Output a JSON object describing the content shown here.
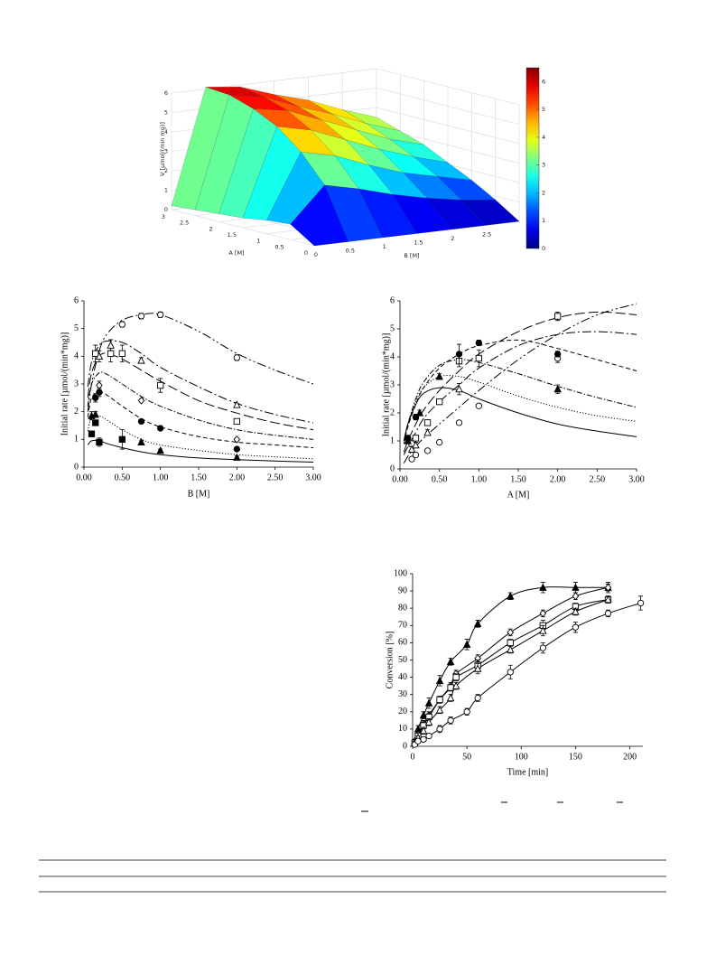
{
  "chart_data": [
    {
      "type": "surface",
      "zlabel": "V [µmol/(min mg)]",
      "xlabel": "A [M]",
      "ylabel": "B [M]",
      "x": [
        0,
        0.5,
        1,
        1.5,
        2,
        2.5,
        3
      ],
      "y": [
        0,
        0.5,
        1,
        1.5,
        2,
        2.5,
        3
      ],
      "z": [
        [
          0,
          0.8,
          0.7,
          0.5,
          0.4,
          0.3,
          0.2
        ],
        [
          0,
          2.6,
          4.0,
          5.0,
          5.6,
          6.0,
          6.1
        ],
        [
          0,
          2.2,
          3.6,
          4.6,
          5.3,
          5.7,
          5.9
        ],
        [
          0,
          1.7,
          2.9,
          3.9,
          4.6,
          5.0,
          5.3
        ],
        [
          0,
          1.3,
          2.3,
          3.2,
          3.9,
          4.4,
          4.8
        ],
        [
          0,
          1.0,
          1.9,
          2.6,
          3.2,
          3.7,
          4.1
        ],
        [
          0,
          0.8,
          1.5,
          2.1,
          2.7,
          3.1,
          3.5
        ]
      ],
      "xlim": [
        0,
        3
      ],
      "ylim": [
        0,
        3
      ],
      "zlim": [
        0,
        6
      ],
      "xticks": [
        0,
        0.5,
        1,
        1.5,
        2,
        2.5,
        3
      ],
      "yticks": [
        0,
        0.5,
        1,
        1.5,
        2,
        2.5
      ],
      "zticks": [
        0,
        1,
        2,
        3,
        4,
        5,
        6
      ],
      "colormap": "jet",
      "clim": [
        0,
        6.5
      ],
      "cticks": [
        0,
        1,
        2,
        3,
        4,
        5,
        6
      ],
      "grid": true
    },
    {
      "type": "line",
      "xlabel": "B [M]",
      "ylabel": "Initial rate [µmol/(min*mg)]",
      "xlim": [
        0,
        3
      ],
      "ylim": [
        0,
        6
      ],
      "xticks": [
        {
          "value": 0,
          "label": "0.00"
        },
        {
          "value": 0.5,
          "label": "0.50"
        },
        {
          "value": 1,
          "label": "1.00"
        },
        {
          "value": 1.5,
          "label": "1.50"
        },
        {
          "value": 2,
          "label": "2.00"
        },
        {
          "value": 2.5,
          "label": "2.50"
        },
        {
          "value": 3,
          "label": "3.00"
        }
      ],
      "yticks": [
        0,
        1,
        2,
        3,
        4,
        5,
        6
      ],
      "fit_x": [
        0.05,
        0.1,
        0.2,
        0.3,
        0.5,
        0.75,
        1,
        1.5,
        2,
        2.5,
        3
      ],
      "series": [
        {
          "color": "#000",
          "line_style": "dash-dot-dot",
          "marker": "circle-open",
          "x": [
            0.5,
            0.75,
            1,
            2
          ],
          "values": [
            5.15,
            5.45,
            5.5,
            3.95
          ],
          "errors": [
            0.1,
            0.1,
            0.1,
            0.1
          ],
          "fit": [
            2.0,
            3.0,
            4.2,
            4.8,
            5.3,
            5.5,
            5.5,
            4.9,
            4.1,
            3.5,
            3.0
          ]
        },
        {
          "color": "#000",
          "line_style": "dash-long",
          "marker": "square-open",
          "x": [
            0.15,
            0.35,
            0.5,
            1,
            2
          ],
          "values": [
            4.1,
            4.1,
            4.1,
            2.95,
            1.65
          ],
          "errors": [
            0.3,
            0.3,
            0.3,
            0.25,
            0.05
          ],
          "fit": [
            2.5,
            3.4,
            4.0,
            4.1,
            3.9,
            3.5,
            3.1,
            2.4,
            1.95,
            1.6,
            1.35
          ]
        },
        {
          "color": "#000",
          "line_style": "dash-dot",
          "marker": "triangle-open",
          "x": [
            0.2,
            0.35,
            0.75,
            2
          ],
          "values": [
            4.0,
            4.4,
            3.85,
            2.25
          ],
          "errors": [
            0.2,
            0.2,
            0.1,
            0.05
          ],
          "fit": [
            2.9,
            3.8,
            4.4,
            4.55,
            4.5,
            4.1,
            3.6,
            2.9,
            2.3,
            1.9,
            1.6
          ]
        },
        {
          "color": "#000",
          "line_style": "dash-dot-short",
          "marker": "diamond-open",
          "x": [
            0.2,
            0.75,
            2
          ],
          "values": [
            2.95,
            2.4,
            1.0
          ],
          "errors": [
            0.15,
            0.05,
            0.05
          ],
          "fit": [
            2.2,
            3.0,
            3.4,
            3.35,
            3.0,
            2.55,
            2.2,
            1.7,
            1.35,
            1.15,
            1.0
          ]
        },
        {
          "color": "#000",
          "line_style": "dashed",
          "marker": "circle-filled",
          "x": [
            0.15,
            0.2,
            0.75,
            1,
            2
          ],
          "values": [
            2.5,
            2.7,
            1.65,
            1.4,
            0.65
          ],
          "errors": [
            0.15,
            0.15,
            0.05,
            0.05,
            0.05
          ],
          "fit": [
            1.8,
            2.5,
            2.7,
            2.6,
            2.2,
            1.75,
            1.45,
            1.1,
            0.9,
            0.8,
            0.7
          ]
        },
        {
          "color": "#000",
          "line_style": "dotted",
          "marker": "triangle-filled",
          "x": [
            0.1,
            0.15,
            0.75,
            1,
            2
          ],
          "values": [
            1.85,
            1.9,
            0.9,
            0.6,
            0.35
          ],
          "errors": [
            0.15,
            0.1,
            0.05,
            0.05,
            0.05
          ],
          "fit": [
            1.3,
            1.8,
            1.85,
            1.7,
            1.35,
            1.0,
            0.8,
            0.6,
            0.45,
            0.37,
            0.3
          ]
        },
        {
          "color": "#000",
          "line_style": "solid",
          "marker": "square-filled",
          "x": [
            0.1,
            0.15,
            0.2,
            0.5
          ],
          "values": [
            1.2,
            1.6,
            0.9,
            1.0
          ],
          "errors": [
            0.1,
            0.1,
            0.15,
            0.35
          ],
          "fit": [
            0.8,
            0.95,
            0.95,
            0.85,
            0.7,
            0.55,
            0.45,
            0.33,
            0.27,
            0.22,
            0.18
          ]
        }
      ]
    },
    {
      "type": "line",
      "xlabel": "A [M]",
      "ylabel": "Initial rate [µmol/(min*mg)]",
      "xlim": [
        0,
        3
      ],
      "ylim": [
        0,
        6
      ],
      "xticks": [
        {
          "value": 0,
          "label": "0.00"
        },
        {
          "value": 0.5,
          "label": "0.50"
        },
        {
          "value": 1,
          "label": "1.00"
        },
        {
          "value": 1.5,
          "label": "1.50"
        },
        {
          "value": 2,
          "label": "2.00"
        },
        {
          "value": 2.5,
          "label": "2.50"
        },
        {
          "value": 3,
          "label": "3.00"
        }
      ],
      "yticks": [
        0,
        1,
        2,
        3,
        4,
        5,
        6
      ],
      "fit_x": [
        0.05,
        0.1,
        0.2,
        0.3,
        0.5,
        0.75,
        1,
        1.5,
        2,
        2.5,
        3
      ],
      "series": [
        {
          "color": "#000",
          "line_style": "dash-dot-dot",
          "marker": "circle-open",
          "x": [
            0.15,
            0.2,
            0.35,
            0.5,
            0.75,
            1,
            2
          ],
          "values": [
            0.35,
            0.5,
            0.65,
            0.95,
            1.65,
            2.25,
            3.95
          ],
          "errors": [
            0.05,
            0.05,
            0.05,
            0.05,
            0.05,
            0.05,
            0.15
          ],
          "fit": [
            0.2,
            0.45,
            0.8,
            1.1,
            1.6,
            2.2,
            2.8,
            3.9,
            4.8,
            5.5,
            5.9
          ]
        },
        {
          "color": "#000",
          "line_style": "dash-long",
          "marker": "square-open",
          "x": [
            0.15,
            0.2,
            0.35,
            0.5,
            0.75,
            1,
            2
          ],
          "values": [
            0.9,
            1.1,
            1.65,
            2.4,
            3.85,
            3.95,
            5.45
          ],
          "errors": [
            0.1,
            0.1,
            0.1,
            0.1,
            0.2,
            0.3,
            0.15
          ],
          "fit": [
            0.6,
            1.0,
            1.6,
            2.1,
            2.8,
            3.5,
            4.1,
            4.9,
            5.4,
            5.6,
            5.5
          ]
        },
        {
          "color": "#000",
          "line_style": "dash-dot",
          "marker": "triangle-open",
          "x": [
            0.15,
            0.2,
            0.35,
            0.75
          ],
          "values": [
            0.7,
            0.85,
            1.3,
            2.85
          ],
          "errors": [
            0.1,
            0.1,
            0.1,
            0.2
          ],
          "fit": [
            0.5,
            0.8,
            1.3,
            1.8,
            2.4,
            3.0,
            3.6,
            4.4,
            4.8,
            4.9,
            4.8
          ]
        },
        {
          "color": "#000",
          "line_style": "dashed",
          "marker": "circle-filled",
          "x": [
            0.1,
            0.2,
            0.75,
            1,
            2
          ],
          "values": [
            1.1,
            1.85,
            4.1,
            4.5,
            4.1
          ],
          "errors": [
            0.1,
            0.1,
            0.35,
            0.1,
            0.1
          ],
          "fit": [
            0.9,
            1.5,
            2.3,
            2.9,
            3.6,
            4.1,
            4.4,
            4.6,
            4.3,
            3.9,
            3.5
          ]
        },
        {
          "color": "#000",
          "line_style": "dash-dot-short",
          "marker": "triangle-filled",
          "x": [
            0.1,
            0.25,
            0.5,
            2
          ],
          "values": [
            1.0,
            2.0,
            3.3,
            2.85
          ],
          "errors": [
            0.1,
            0.1,
            0.1,
            0.15
          ],
          "fit": [
            1.0,
            1.6,
            2.5,
            3.1,
            3.7,
            3.9,
            3.8,
            3.4,
            2.95,
            2.55,
            2.2
          ]
        },
        {
          "color": "#000",
          "line_style": "dotted",
          "marker": "none",
          "x": [],
          "values": [],
          "errors": [],
          "fit": [
            1.0,
            1.6,
            2.4,
            2.9,
            3.3,
            3.3,
            3.1,
            2.6,
            2.2,
            1.9,
            1.7
          ]
        },
        {
          "color": "#000",
          "line_style": "solid",
          "marker": "none",
          "x": [],
          "values": [],
          "errors": [],
          "fit": [
            1.0,
            1.6,
            2.3,
            2.7,
            2.9,
            2.8,
            2.5,
            2.0,
            1.6,
            1.35,
            1.15
          ]
        }
      ]
    },
    {
      "type": "line",
      "xlabel": "Time [min]",
      "ylabel": "Conversion [%]",
      "xlim": [
        0,
        212
      ],
      "ylim": [
        0,
        100
      ],
      "xticks": [
        0,
        50,
        100,
        150,
        200
      ],
      "yticks": [
        0,
        10,
        20,
        30,
        40,
        50,
        60,
        70,
        80,
        90,
        100
      ],
      "series": [
        {
          "color": "#000",
          "line_style": "solid",
          "marker": "triangle-filled",
          "x": [
            2,
            5,
            10,
            15,
            25,
            35,
            50,
            60,
            90,
            120,
            150,
            180
          ],
          "values": [
            3,
            10,
            18,
            25,
            38,
            49,
            59,
            71,
            87,
            92,
            92,
            92
          ],
          "errors": [
            1,
            2,
            2,
            3,
            3,
            2,
            3,
            2,
            2,
            3,
            3,
            3
          ]
        },
        {
          "color": "#000",
          "line_style": "solid",
          "marker": "diamond-open",
          "x": [
            2,
            5,
            10,
            15,
            25,
            35,
            40,
            60,
            90,
            120,
            150,
            180
          ],
          "values": [
            3,
            7,
            13,
            18,
            27,
            35,
            42,
            51,
            66,
            77,
            87,
            92
          ],
          "errors": [
            1,
            2,
            2,
            2,
            2,
            2,
            2,
            2,
            2,
            2,
            2,
            2
          ]
        },
        {
          "color": "#000",
          "line_style": "solid",
          "marker": "square-open",
          "x": [
            2,
            5,
            10,
            15,
            25,
            35,
            40,
            60,
            90,
            120,
            150,
            180
          ],
          "values": [
            2,
            6,
            12,
            17,
            27,
            34,
            40,
            47,
            60,
            70,
            81,
            85
          ],
          "errors": [
            1,
            2,
            2,
            2,
            2,
            2,
            2,
            3,
            2,
            3,
            2,
            2
          ]
        },
        {
          "color": "#000",
          "line_style": "solid",
          "marker": "triangle-open",
          "x": [
            2,
            5,
            10,
            15,
            25,
            35,
            40,
            60,
            90,
            120,
            150,
            180
          ],
          "values": [
            2,
            5,
            9,
            14,
            21,
            28,
            35,
            45,
            56,
            67,
            78,
            85
          ],
          "errors": [
            1,
            1,
            2,
            2,
            2,
            2,
            2,
            3,
            2,
            3,
            2,
            2
          ]
        },
        {
          "color": "#000",
          "line_style": "solid",
          "marker": "circle-open",
          "x": [
            2,
            5,
            10,
            15,
            25,
            35,
            50,
            60,
            90,
            120,
            150,
            180,
            210
          ],
          "values": [
            1,
            3,
            4,
            6,
            10,
            15,
            20,
            28,
            43,
            57,
            69,
            77,
            83
          ],
          "errors": [
            1,
            1,
            1,
            1,
            2,
            2,
            2,
            2,
            4,
            3,
            3,
            2,
            4
          ]
        }
      ]
    }
  ]
}
